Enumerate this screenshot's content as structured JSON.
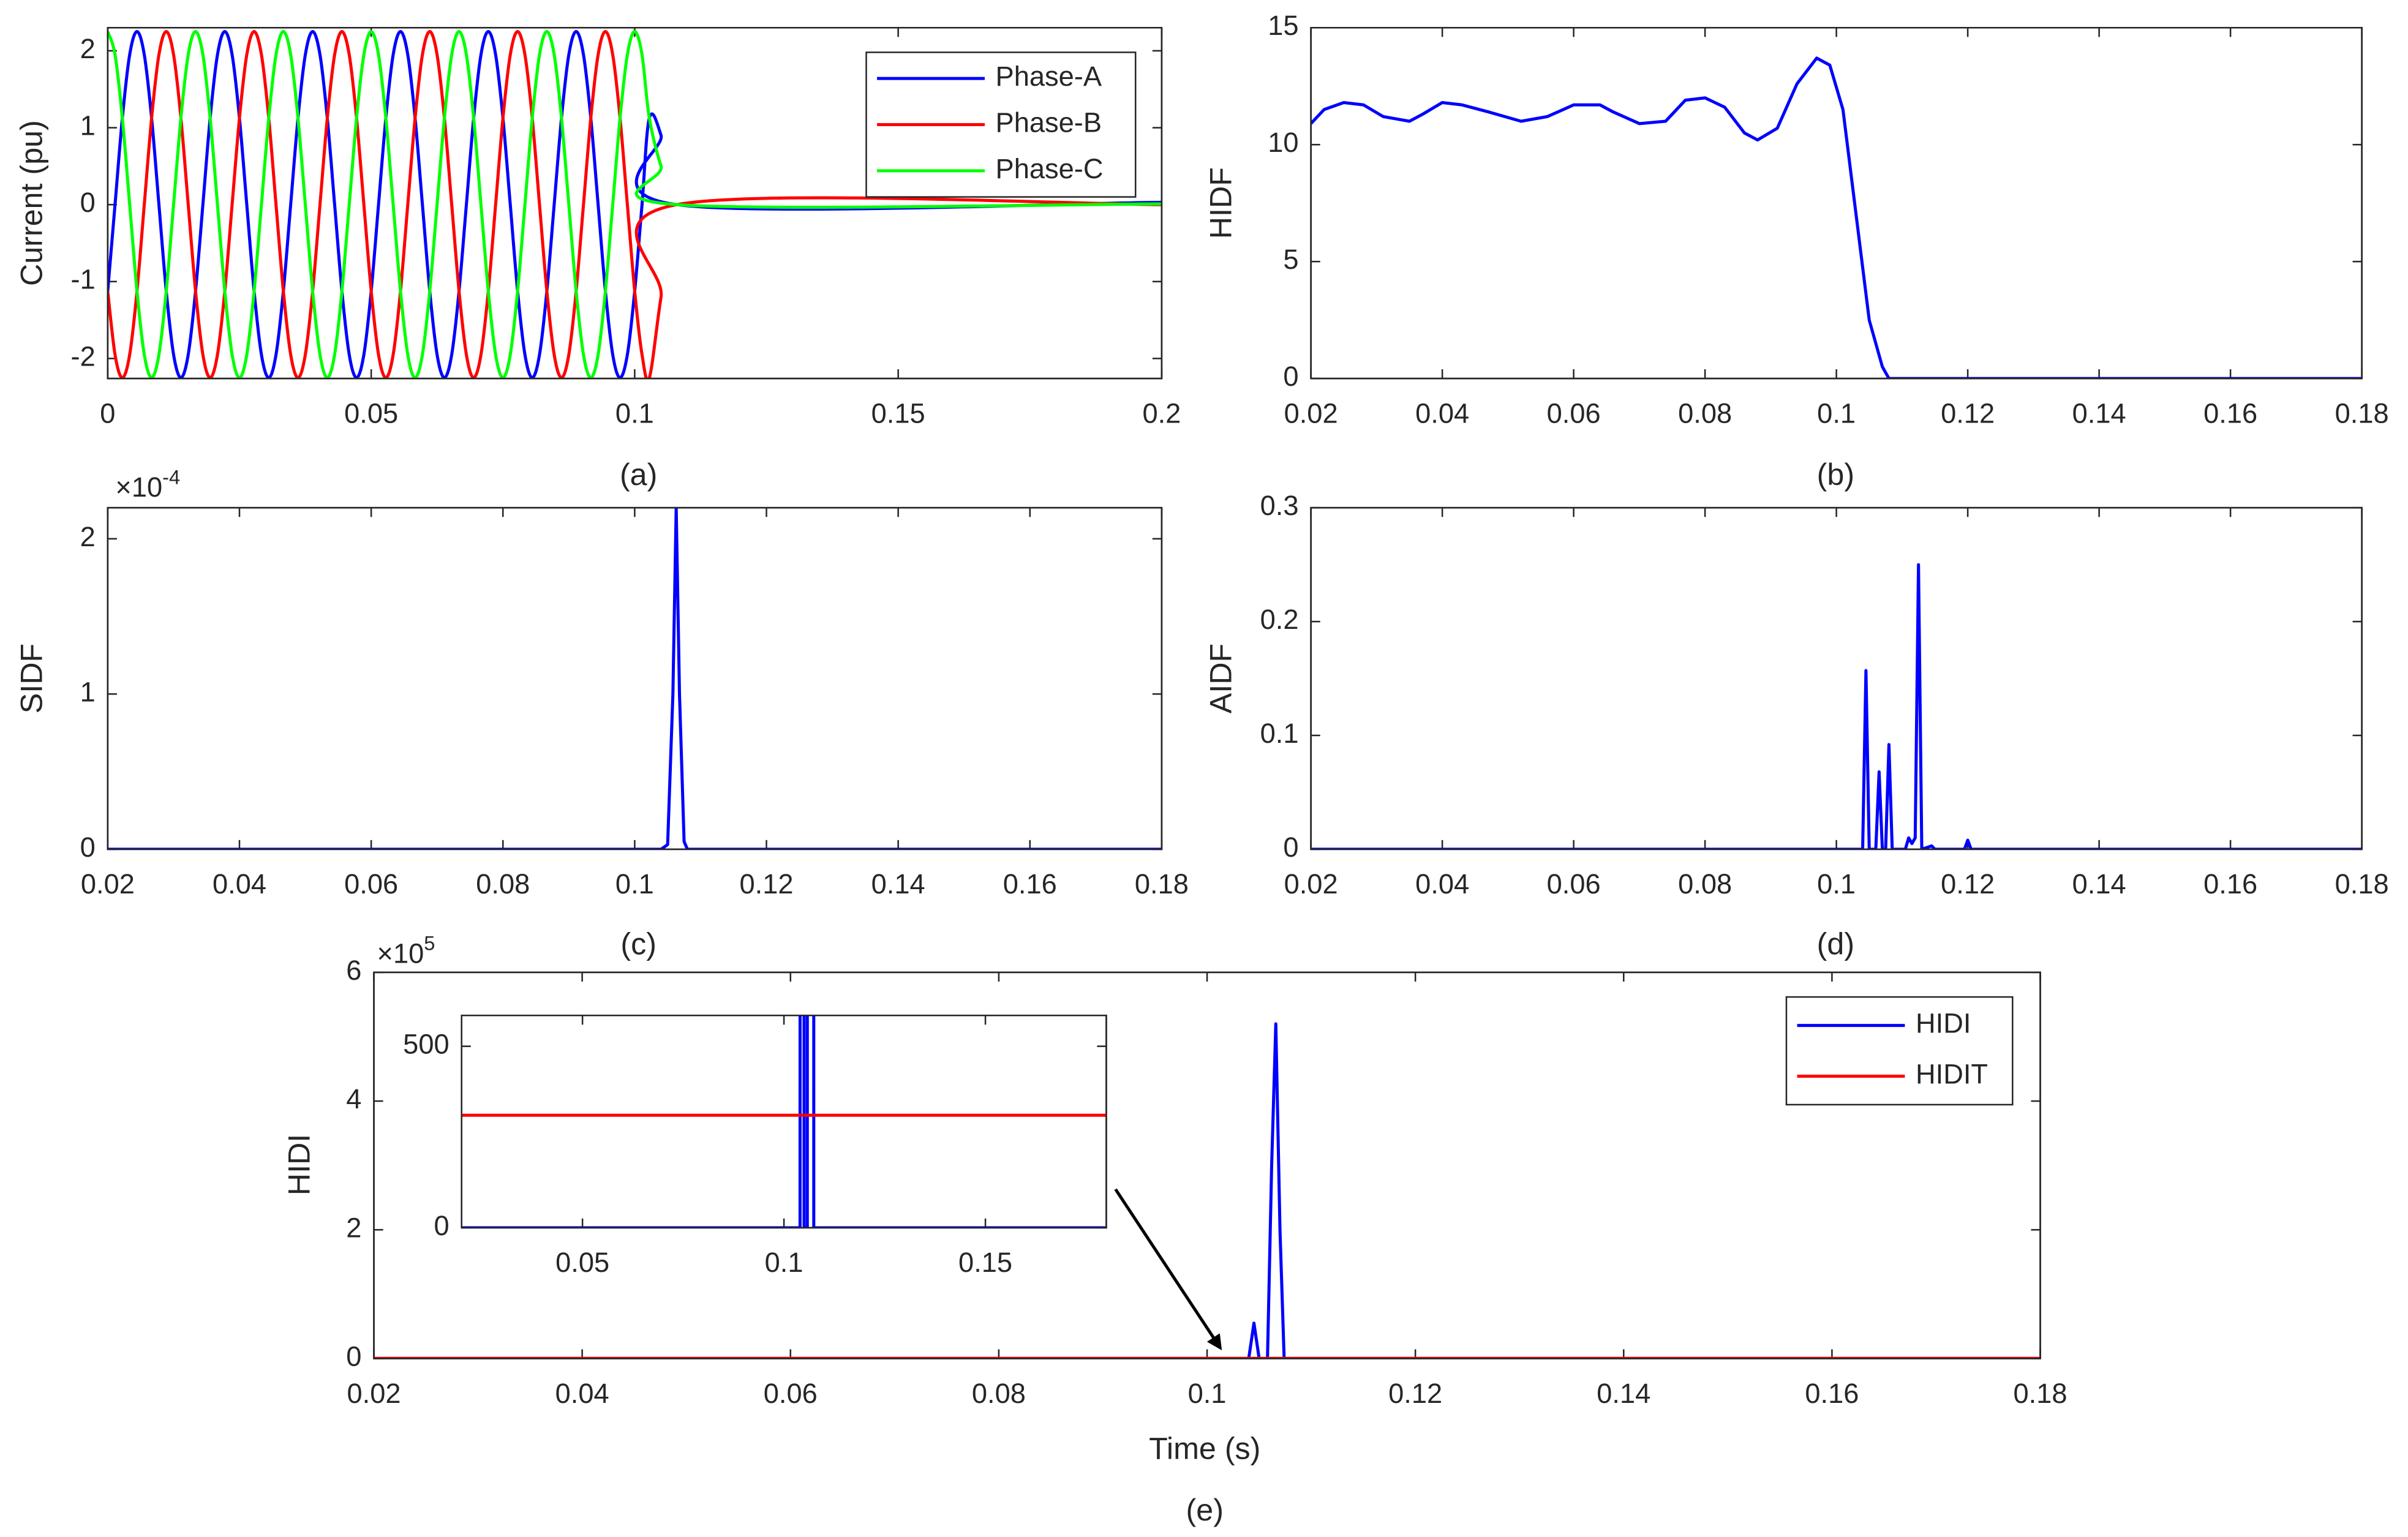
{
  "chart_data": [
    {
      "type": "line",
      "ylabel": "Current (pu)",
      "caption": "(a)",
      "smooth": true,
      "grid": false,
      "legend": "northeast",
      "xlim": [
        0,
        0.2
      ],
      "xticks": [
        0,
        0.05,
        0.1,
        0.15,
        0.2
      ],
      "ylim": [
        -2.26,
        2.3
      ],
      "yticks": [
        -2,
        -1,
        0,
        1,
        2
      ],
      "x": [
        0,
        0.00139,
        0.00278,
        0.00417,
        0.00556,
        0.00694,
        0.00833,
        0.00972,
        0.01111,
        0.0125,
        0.01389,
        0.01528,
        0.01667,
        0.01806,
        0.01944,
        0.02083,
        0.02222,
        0.02361,
        0.025,
        0.02639,
        0.02778,
        0.02917,
        0.03056,
        0.03194,
        0.03333,
        0.03472,
        0.03611,
        0.0375,
        0.03889,
        0.04028,
        0.04167,
        0.04306,
        0.04444,
        0.04583,
        0.04722,
        0.04861,
        0.05,
        0.05139,
        0.05278,
        0.05417,
        0.05556,
        0.05694,
        0.05833,
        0.05972,
        0.06111,
        0.0625,
        0.06389,
        0.06528,
        0.06667,
        0.06806,
        0.06944,
        0.07083,
        0.07222,
        0.07361,
        0.075,
        0.07639,
        0.07778,
        0.07917,
        0.08056,
        0.08194,
        0.08333,
        0.08472,
        0.08611,
        0.0875,
        0.08889,
        0.09028,
        0.09167,
        0.09306,
        0.09444,
        0.09583,
        0.09722,
        0.09861,
        0.1,
        0.10139,
        0.10278,
        0.105,
        0.108,
        0.2
      ],
      "series": [
        {
          "name": "Phase-A",
          "color": "#0000ff",
          "values": [
            -1.125,
            0,
            1.125,
            1.949,
            2.25,
            1.949,
            1.125,
            0,
            -1.125,
            -1.949,
            -2.25,
            -1.949,
            -1.125,
            0,
            1.125,
            1.949,
            2.25,
            1.949,
            1.125,
            0,
            -1.125,
            -1.949,
            -2.25,
            -1.949,
            -1.125,
            0,
            1.125,
            1.949,
            2.25,
            1.949,
            1.125,
            0,
            -1.125,
            -1.949,
            -2.25,
            -1.949,
            -1.125,
            0,
            1.125,
            1.949,
            2.25,
            1.949,
            1.125,
            0,
            -1.125,
            -1.949,
            -2.25,
            -1.949,
            -1.125,
            0,
            1.125,
            1.949,
            2.25,
            1.949,
            1.125,
            0,
            -1.125,
            -1.949,
            -2.25,
            -1.949,
            -1.125,
            0,
            1.125,
            1.949,
            2.25,
            1.949,
            1.125,
            0,
            -1.125,
            -1.949,
            -2.25,
            -1.949,
            -1.125,
            0,
            1.125,
            0.9,
            0,
            0.03
          ]
        },
        {
          "name": "Phase-B",
          "color": "#ff0000",
          "values": [
            -1.125,
            -1.949,
            -2.25,
            -1.949,
            -1.125,
            0,
            1.125,
            1.949,
            2.25,
            1.949,
            1.125,
            0,
            -1.125,
            -1.949,
            -2.25,
            -1.949,
            -1.125,
            0,
            1.125,
            1.949,
            2.25,
            1.949,
            1.125,
            0,
            -1.125,
            -1.949,
            -2.25,
            -1.949,
            -1.125,
            0,
            1.125,
            1.949,
            2.25,
            1.949,
            1.125,
            0,
            -1.125,
            -1.949,
            -2.25,
            -1.949,
            -1.125,
            0,
            1.125,
            1.949,
            2.25,
            1.949,
            1.125,
            0,
            -1.125,
            -1.949,
            -2.25,
            -1.949,
            -1.125,
            0,
            1.125,
            1.949,
            2.25,
            1.949,
            1.125,
            0,
            -1.125,
            -1.949,
            -2.25,
            -1.949,
            -1.125,
            0,
            1.125,
            1.949,
            2.25,
            1.949,
            1.125,
            0,
            -1.125,
            -1.949,
            -2.25,
            -1.2,
            0,
            0
          ]
        },
        {
          "name": "Phase-C",
          "color": "#00ff00",
          "values": [
            2.25,
            1.949,
            1.125,
            0,
            -1.125,
            -1.949,
            -2.25,
            -1.949,
            -1.125,
            0,
            1.125,
            1.949,
            2.25,
            1.949,
            1.125,
            0,
            -1.125,
            -1.949,
            -2.25,
            -1.949,
            -1.125,
            0,
            1.125,
            1.949,
            2.25,
            1.949,
            1.125,
            0,
            -1.125,
            -1.949,
            -2.25,
            -1.949,
            -1.125,
            0,
            1.125,
            1.949,
            2.25,
            1.949,
            1.125,
            0,
            -1.125,
            -1.949,
            -2.25,
            -1.949,
            -1.125,
            0,
            1.125,
            1.949,
            2.25,
            1.949,
            1.125,
            0,
            -1.125,
            -1.949,
            -2.25,
            -1.949,
            -1.125,
            0,
            1.125,
            1.949,
            2.25,
            1.949,
            1.125,
            0,
            -1.125,
            -1.949,
            -2.25,
            -1.949,
            -1.125,
            0,
            1.125,
            1.949,
            2.25,
            1.949,
            1.125,
            0.5,
            0,
            0.01
          ]
        }
      ]
    },
    {
      "type": "line",
      "ylabel": "HIDF",
      "caption": "(b)",
      "grid": false,
      "color": "#0000ff",
      "xlim": [
        0.02,
        0.18
      ],
      "xticks": [
        0.02,
        0.04,
        0.06,
        0.08,
        0.1,
        0.12,
        0.14,
        0.16,
        0.18
      ],
      "ylim": [
        0,
        15
      ],
      "yticks": [
        0,
        5,
        10,
        15
      ],
      "x": [
        0.02,
        0.022,
        0.025,
        0.028,
        0.031,
        0.033,
        0.035,
        0.037,
        0.04,
        0.043,
        0.047,
        0.052,
        0.056,
        0.06,
        0.064,
        0.066,
        0.07,
        0.074,
        0.077,
        0.08,
        0.083,
        0.086,
        0.088,
        0.091,
        0.094,
        0.097,
        0.099,
        0.101,
        0.103,
        0.105,
        0.107,
        0.108,
        0.18
      ],
      "values": [
        10.9,
        11.5,
        11.8,
        11.7,
        11.2,
        11.1,
        11.0,
        11.3,
        11.8,
        11.7,
        11.4,
        11.0,
        11.2,
        11.7,
        11.7,
        11.4,
        10.9,
        11.0,
        11.9,
        12.0,
        11.6,
        10.5,
        10.2,
        10.7,
        12.6,
        13.7,
        13.4,
        11.5,
        7.0,
        2.5,
        0.5,
        0,
        0
      ]
    },
    {
      "type": "line",
      "ylabel": "SIDF",
      "caption": "(c)",
      "grid": false,
      "color": "#0000ff",
      "y_multiplier": {
        "base": "×10",
        "exponent": "-4"
      },
      "xlim": [
        0.02,
        0.18
      ],
      "xticks": [
        0.02,
        0.04,
        0.06,
        0.08,
        0.1,
        0.12,
        0.14,
        0.16,
        0.18
      ],
      "ylim": [
        0,
        0.00022
      ],
      "yticks": [
        0,
        {
          "value": 0.0001,
          "label": "1"
        },
        {
          "value": 0.0002,
          "label": "2"
        }
      ],
      "x": [
        0.02,
        0.104,
        0.105,
        0.1058,
        0.1063,
        0.1068,
        0.1075,
        0.108,
        0.18
      ],
      "values": [
        0,
        0,
        3e-06,
        0.0001,
        0.00022,
        0.0001,
        5e-06,
        0,
        0
      ]
    },
    {
      "type": "line",
      "ylabel": "AIDF",
      "caption": "(d)",
      "grid": false,
      "color": "#0000ff",
      "xlim": [
        0.02,
        0.18
      ],
      "xticks": [
        0.02,
        0.04,
        0.06,
        0.08,
        0.1,
        0.12,
        0.14,
        0.16,
        0.18
      ],
      "ylim": [
        0,
        0.3
      ],
      "yticks": [
        0,
        0.1,
        0.2,
        0.3
      ],
      "x": [
        0.02,
        0.104,
        0.1045,
        0.105,
        0.106,
        0.1065,
        0.107,
        0.1075,
        0.108,
        0.1085,
        0.1105,
        0.111,
        0.1115,
        0.112,
        0.1125,
        0.113,
        0.1145,
        0.115,
        0.1195,
        0.12,
        0.1205,
        0.18
      ],
      "values": [
        0,
        0,
        0.157,
        0,
        0,
        0.068,
        0,
        0,
        0.092,
        0,
        0,
        0.01,
        0.005,
        0.01,
        0.25,
        0,
        0.003,
        0,
        0,
        0.008,
        0,
        0
      ]
    },
    {
      "type": "line",
      "ylabel": "HIDI",
      "xlabel": "Time (s)",
      "caption": "(e)",
      "grid": false,
      "legend": "northeast",
      "y_multiplier": {
        "base": "×10",
        "exponent": "5"
      },
      "xlim": [
        0.02,
        0.18
      ],
      "xticks": [
        0.02,
        0.04,
        0.06,
        0.08,
        0.1,
        0.12,
        0.14,
        0.16,
        0.18
      ],
      "ylim": [
        0,
        600000
      ],
      "yticks": [
        0,
        {
          "value": 200000,
          "label": "2"
        },
        {
          "value": 400000,
          "label": "4"
        },
        {
          "value": 600000,
          "label": "6"
        }
      ],
      "x": [
        0.02,
        0.104,
        0.1045,
        0.105,
        0.1058,
        0.1062,
        0.1066,
        0.107,
        0.1074,
        0.18
      ],
      "series": [
        {
          "name": "HIDI",
          "color": "#0000ff",
          "values": [
            0,
            0,
            55000,
            0,
            0,
            300000,
            520000,
            200000,
            0,
            0
          ]
        },
        {
          "name": "HIDIT",
          "color": "#ff0000",
          "values": [
            310,
            310,
            310,
            310,
            310,
            310,
            310,
            310,
            310,
            310
          ]
        }
      ],
      "inset": {
        "xlim": [
          0.02,
          0.18
        ],
        "xticks": [
          0.05,
          0.1,
          0.15
        ],
        "ylim": [
          0,
          585
        ],
        "yticks": [
          0,
          500
        ]
      }
    }
  ]
}
